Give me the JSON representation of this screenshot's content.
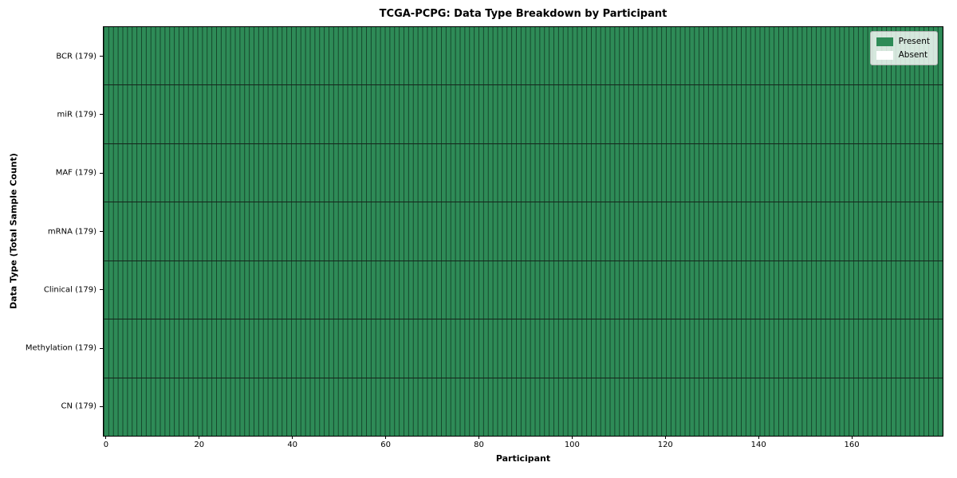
{
  "figure": {
    "title": "TCGA-PCPG: Data Type Breakdown by Participant",
    "background_color": "#ffffff"
  },
  "axes": {
    "x_label": "Participant",
    "y_label": "Data Type (Total Sample Count)"
  },
  "legend": {
    "position": "upper right",
    "items": [
      {
        "label": "Present",
        "color": "#2e8b57"
      },
      {
        "label": "Absent",
        "color": "#ffffff"
      }
    ]
  },
  "chart_data": {
    "type": "heatmap",
    "title": "TCGA-PCPG: Data Type Breakdown by Participant",
    "xlabel": "Participant",
    "ylabel": "Data Type (Total Sample Count)",
    "n_participants": 179,
    "xlim": [
      -0.5,
      179.5
    ],
    "x_ticks": [
      0,
      20,
      40,
      60,
      80,
      100,
      120,
      140,
      160
    ],
    "value_encoding": {
      "1": "Present",
      "0": "Absent"
    },
    "rows": [
      {
        "data_type": "BCR",
        "label": "BCR (179)",
        "total_samples": 179,
        "present_count": 179,
        "absent_count": 0,
        "values_run_length": [
          [
            1,
            179
          ]
        ]
      },
      {
        "data_type": "miR",
        "label": "miR (179)",
        "total_samples": 179,
        "present_count": 179,
        "absent_count": 0,
        "values_run_length": [
          [
            1,
            179
          ]
        ]
      },
      {
        "data_type": "MAF",
        "label": "MAF (179)",
        "total_samples": 179,
        "present_count": 179,
        "absent_count": 0,
        "values_run_length": [
          [
            1,
            179
          ]
        ]
      },
      {
        "data_type": "mRNA",
        "label": "mRNA (179)",
        "total_samples": 179,
        "present_count": 179,
        "absent_count": 0,
        "values_run_length": [
          [
            1,
            179
          ]
        ]
      },
      {
        "data_type": "Clinical",
        "label": "Clinical (179)",
        "total_samples": 179,
        "present_count": 179,
        "absent_count": 0,
        "values_run_length": [
          [
            1,
            179
          ]
        ]
      },
      {
        "data_type": "Methylation",
        "label": "Methylation (179)",
        "total_samples": 179,
        "present_count": 179,
        "absent_count": 0,
        "values_run_length": [
          [
            1,
            179
          ]
        ]
      },
      {
        "data_type": "CN",
        "label": "CN (179)",
        "total_samples": 179,
        "present_count": 179,
        "absent_count": 0,
        "values_run_length": [
          [
            1,
            179
          ]
        ]
      }
    ],
    "colors": {
      "present": "#2e8b57",
      "absent": "#ffffff",
      "cell_grid_line": "#15301f",
      "row_separator": "#15241b",
      "spine": "#000000"
    },
    "grid": "cell borders on",
    "legend_position": "upper right"
  }
}
